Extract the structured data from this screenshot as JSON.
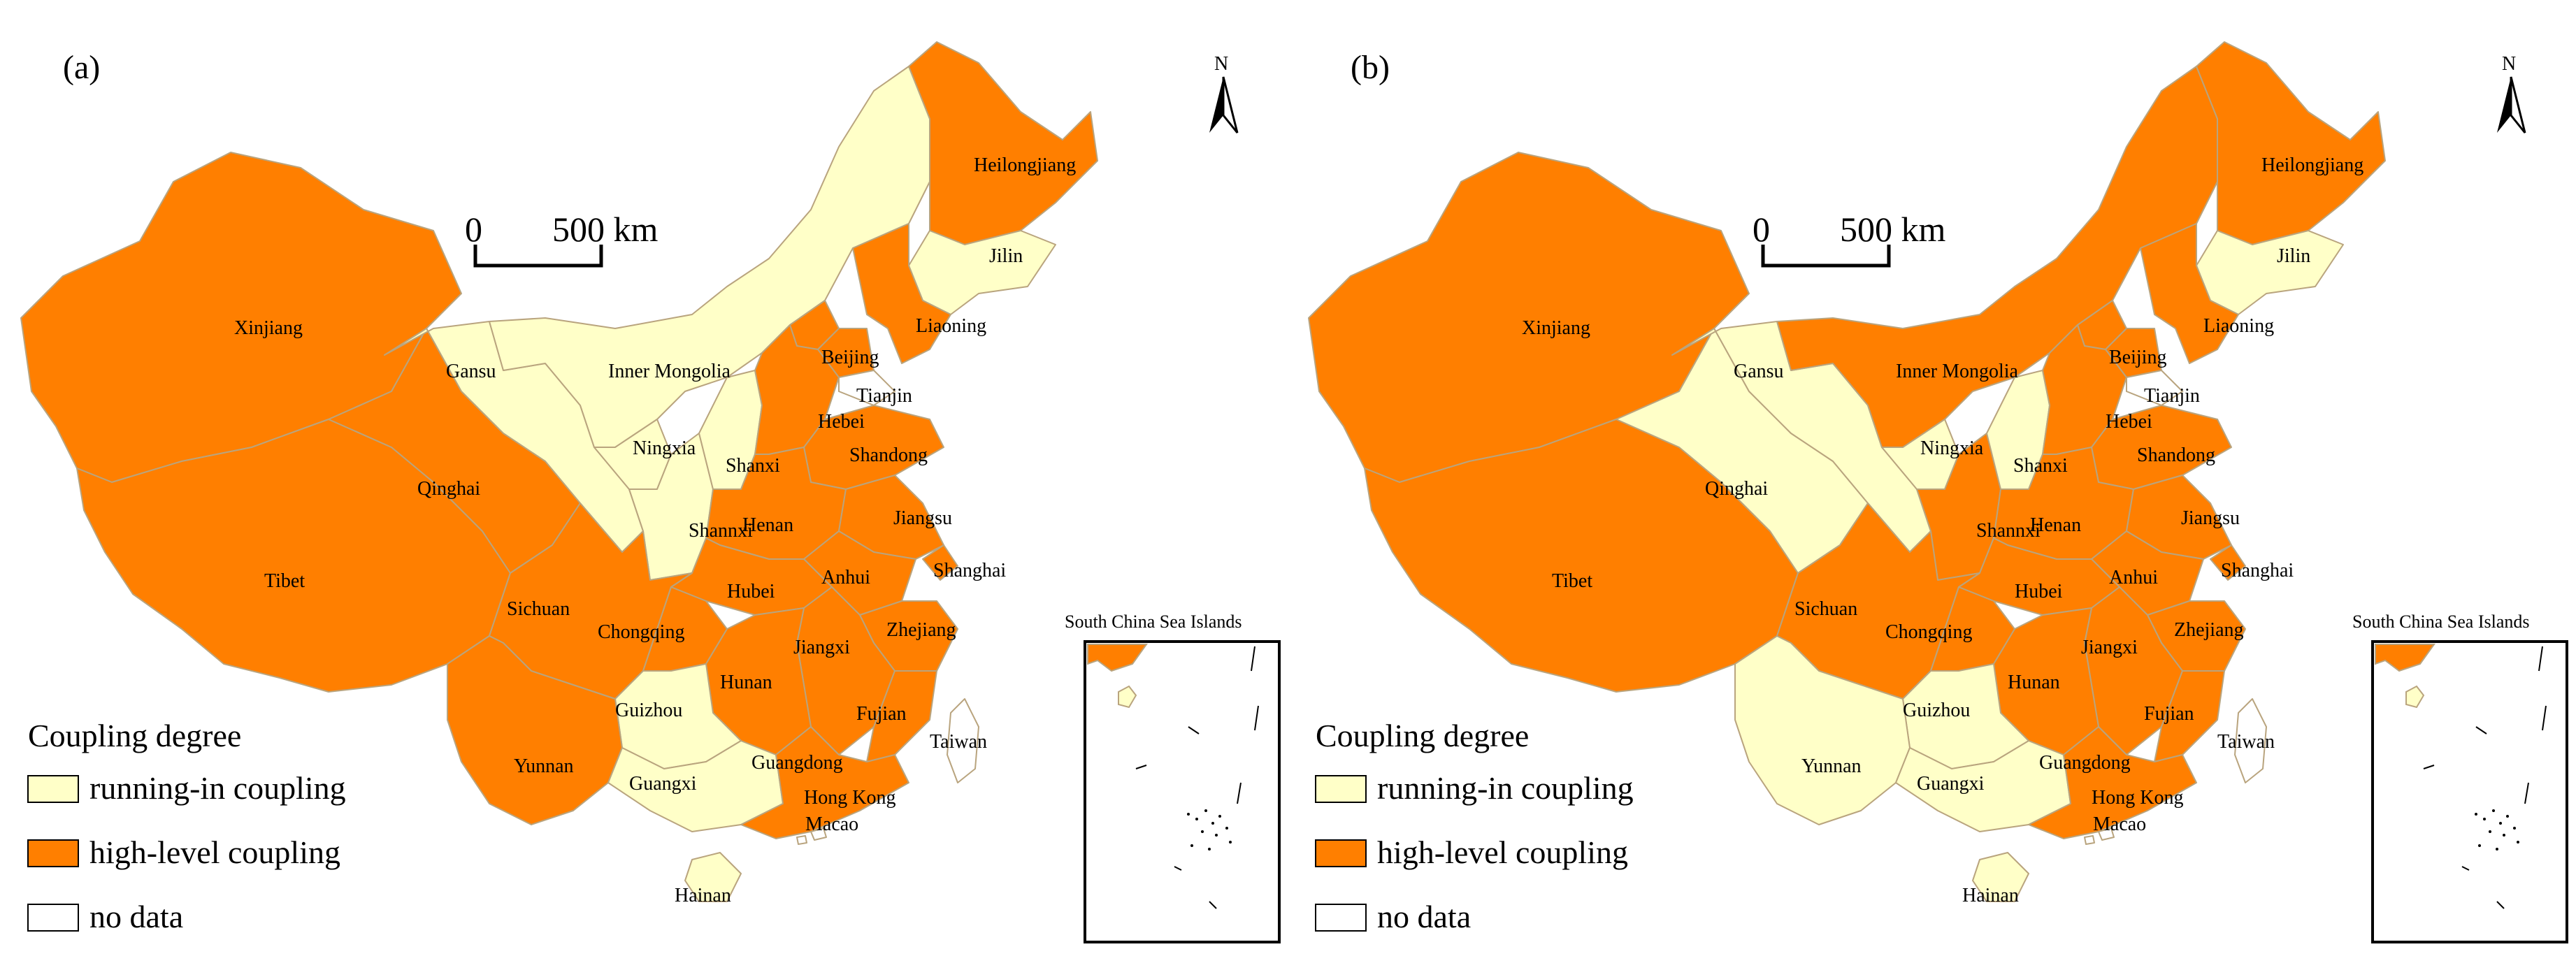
{
  "colors": {
    "running-in coupling": "#ffffc8",
    "high-level coupling": "#ff7f00",
    "no data": "#ffffff",
    "border": "#b9a47e"
  },
  "scale_bar": {
    "start": "0",
    "end": "500 km"
  },
  "north_label": "N",
  "inset_title": "South China Sea Islands",
  "legend": {
    "title": "Coupling degree",
    "items": [
      "running-in coupling",
      "high-level coupling",
      "no data"
    ]
  },
  "panels": [
    {
      "label": "(a)",
      "classes": {
        "Xinjiang": "high-level coupling",
        "Tibet": "high-level coupling",
        "Qinghai": "high-level coupling",
        "Gansu": "running-in coupling",
        "Inner Mongolia": "running-in coupling",
        "Ningxia": "running-in coupling",
        "Shannxi": "running-in coupling",
        "Shanxi": "running-in coupling",
        "Heilongjiang": "high-level coupling",
        "Jilin": "running-in coupling",
        "Liaoning": "high-level coupling",
        "Beijing": "high-level coupling",
        "Tianjin": "high-level coupling",
        "Hebei": "high-level coupling",
        "Shandong": "high-level coupling",
        "Henan": "high-level coupling",
        "Jiangsu": "high-level coupling",
        "Shanghai": "high-level coupling",
        "Anhui": "high-level coupling",
        "Hubei": "high-level coupling",
        "Sichuan": "high-level coupling",
        "Chongqing": "high-level coupling",
        "Zhejiang": "high-level coupling",
        "Jiangxi": "high-level coupling",
        "Hunan": "high-level coupling",
        "Fujian": "high-level coupling",
        "Guizhou": "running-in coupling",
        "Yunnan": "high-level coupling",
        "Guangxi": "running-in coupling",
        "Guangdong": "high-level coupling",
        "Hainan": "running-in coupling",
        "Taiwan": "no data",
        "Hong Kong": "no data",
        "Macao": "no data"
      }
    },
    {
      "label": "(b)",
      "classes": {
        "Xinjiang": "high-level coupling",
        "Tibet": "high-level coupling",
        "Qinghai": "running-in coupling",
        "Gansu": "running-in coupling",
        "Inner Mongolia": "high-level coupling",
        "Ningxia": "running-in coupling",
        "Shannxi": "high-level coupling",
        "Shanxi": "running-in coupling",
        "Heilongjiang": "high-level coupling",
        "Jilin": "running-in coupling",
        "Liaoning": "high-level coupling",
        "Beijing": "high-level coupling",
        "Tianjin": "high-level coupling",
        "Hebei": "high-level coupling",
        "Shandong": "high-level coupling",
        "Henan": "high-level coupling",
        "Jiangsu": "high-level coupling",
        "Shanghai": "high-level coupling",
        "Anhui": "high-level coupling",
        "Hubei": "high-level coupling",
        "Sichuan": "high-level coupling",
        "Chongqing": "high-level coupling",
        "Zhejiang": "high-level coupling",
        "Jiangxi": "high-level coupling",
        "Hunan": "high-level coupling",
        "Fujian": "high-level coupling",
        "Guizhou": "running-in coupling",
        "Yunnan": "running-in coupling",
        "Guangxi": "running-in coupling",
        "Guangdong": "high-level coupling",
        "Hainan": "running-in coupling",
        "Taiwan": "no data",
        "Hong Kong": "no data",
        "Macao": "no data"
      }
    }
  ]
}
